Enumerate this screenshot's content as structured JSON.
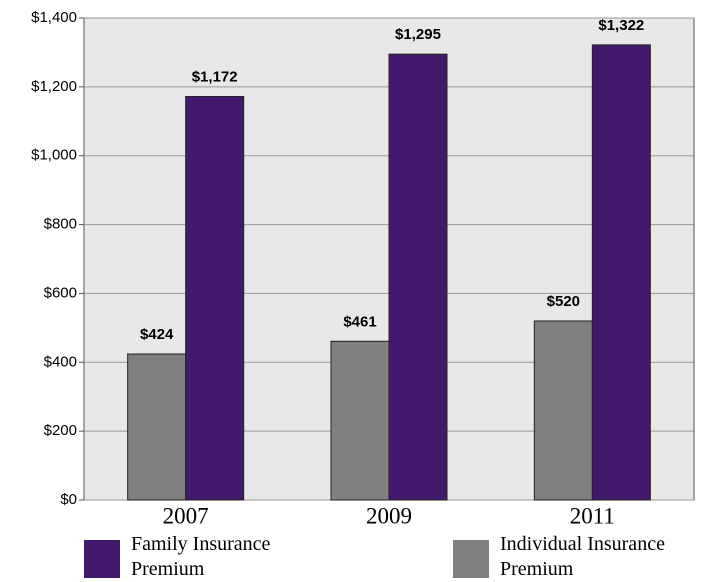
{
  "chart_data": {
    "type": "bar",
    "categories": [
      "2007",
      "2009",
      "2011"
    ],
    "series": [
      {
        "name": "Individual Insurance Premium",
        "color": "#808080",
        "values": [
          424,
          461,
          520
        ],
        "value_labels": [
          "$424",
          "$461",
          "$520"
        ]
      },
      {
        "name": "Family Insurance Premium",
        "color": "#43196e",
        "values": [
          1172,
          1295,
          1322
        ],
        "value_labels": [
          "$1,172",
          "$1,295",
          "$1,322"
        ]
      }
    ],
    "ylim": [
      0,
      1400
    ],
    "yticks": [
      {
        "value": 0,
        "label": "$0"
      },
      {
        "value": 200,
        "label": "$200"
      },
      {
        "value": 400,
        "label": "$400"
      },
      {
        "value": 600,
        "label": "$600"
      },
      {
        "value": 800,
        "label": "$800"
      },
      {
        "value": 1000,
        "label": "$1,000"
      },
      {
        "value": 1200,
        "label": "$1,200"
      },
      {
        "value": 1400,
        "label": "$1,400"
      }
    ],
    "grid": true
  }
}
